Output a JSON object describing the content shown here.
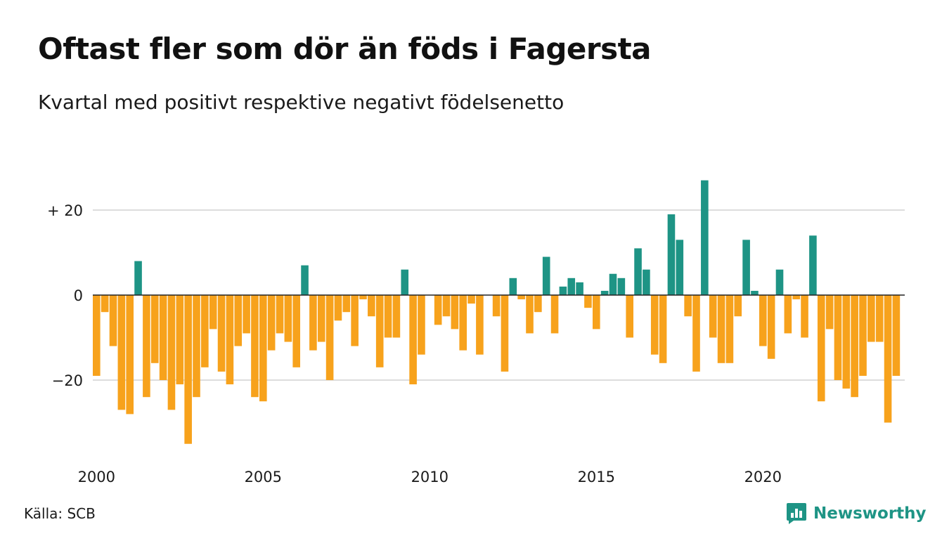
{
  "header": {
    "title": "Oftast fler som dör än föds i Fagersta",
    "subtitle": "Kvartal med positivt respektive negativt födelsenetto"
  },
  "footer": {
    "source": "Källa: SCB",
    "brand": "Newsworthy",
    "brand_icon": "newsworthy-logo-icon"
  },
  "colors": {
    "positive": "#1e9485",
    "negative": "#f7a21c",
    "grid": "#dddddd",
    "zero_line": "#222222",
    "brand": "#1e9485"
  },
  "chart_data": {
    "type": "bar",
    "title": "",
    "xlabel": "",
    "ylabel": "",
    "ylim": [
      -36,
      28
    ],
    "yticks": [
      {
        "value": 20,
        "label": "+ 20"
      },
      {
        "value": 0,
        "label": "0"
      },
      {
        "value": -20,
        "label": "−20"
      }
    ],
    "xticks": [
      {
        "year": 2000,
        "label": "2000"
      },
      {
        "year": 2005,
        "label": "2005"
      },
      {
        "year": 2010,
        "label": "2010"
      },
      {
        "year": 2015,
        "label": "2015"
      },
      {
        "year": 2020,
        "label": "2020"
      }
    ],
    "grid": true,
    "start": "2000 Q1",
    "series": [
      {
        "values": [
          -19,
          -4,
          -12,
          -27,
          -28,
          8,
          -24,
          -16,
          -20,
          -27,
          -21,
          -35,
          -24,
          -17,
          -8,
          -18,
          -21,
          -12,
          -9,
          -24,
          -25,
          -13,
          -9,
          -11,
          -17,
          7,
          -13,
          -11,
          -20,
          -6,
          -4,
          -12,
          -1,
          -5,
          -17,
          -10,
          -10,
          6,
          -21,
          -14,
          0,
          -7,
          -5,
          -8,
          -13,
          -2,
          -14,
          0,
          -5,
          -18,
          4,
          -1,
          -9,
          -4,
          9,
          -9,
          2,
          4,
          3,
          -3,
          -8,
          1,
          5,
          4,
          -10,
          11,
          6,
          -14,
          -16,
          19,
          13,
          -5,
          -18,
          27,
          -10,
          -16,
          -16,
          -5,
          13,
          1,
          -12,
          -15,
          6,
          -9,
          -1,
          -10,
          14,
          -25,
          -8,
          -20,
          -22,
          -24,
          -19,
          -11,
          -11,
          -30,
          -19
        ]
      }
    ]
  }
}
